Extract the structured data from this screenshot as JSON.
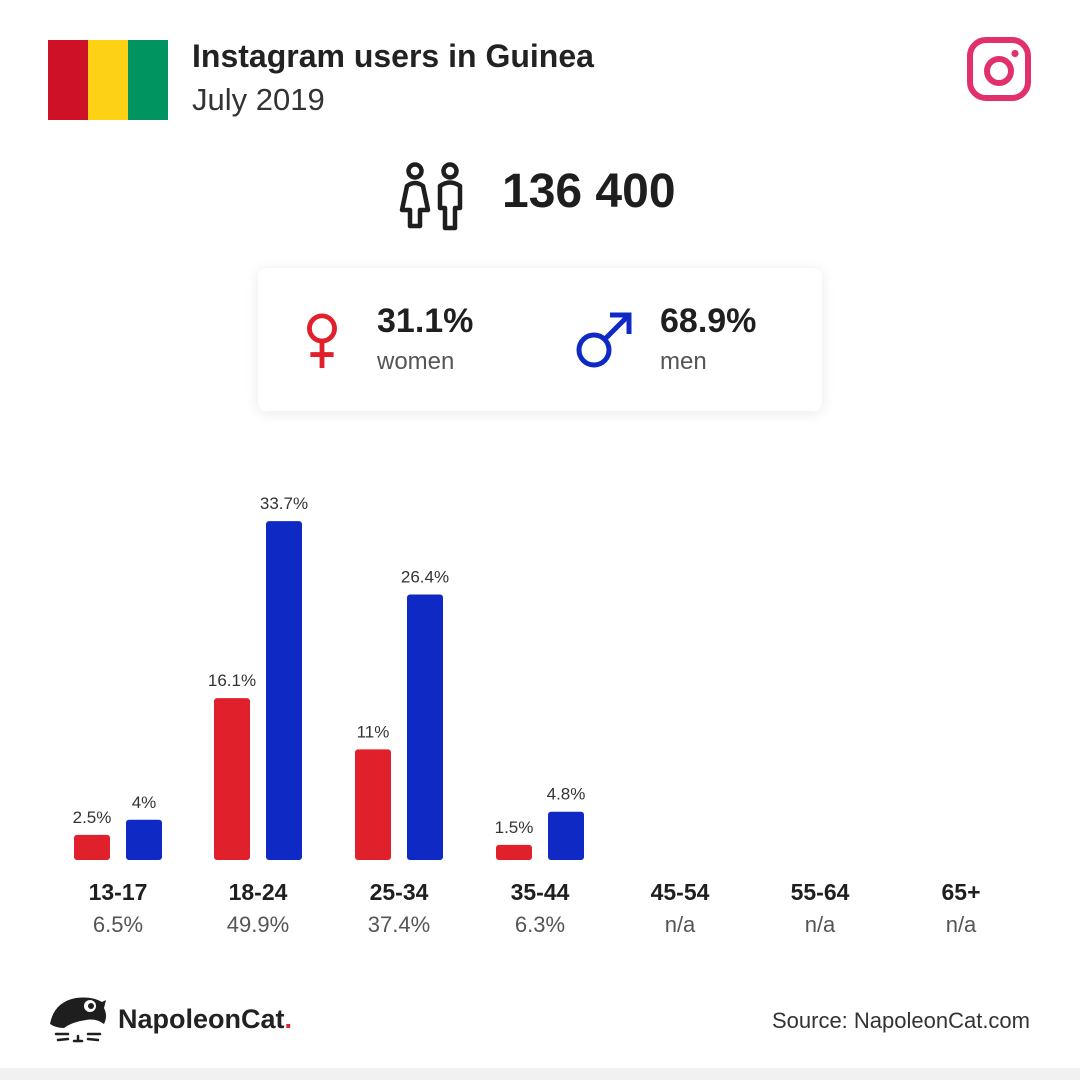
{
  "header": {
    "title": "Instagram users in Guinea",
    "subtitle": "July 2019",
    "flag_colors": [
      "#ce1126",
      "#fcd116",
      "#009460"
    ],
    "brand_icon": "instagram-icon",
    "brand_color": "#e1306c"
  },
  "summary": {
    "icon": "people-icon",
    "total": "136 400"
  },
  "gender": {
    "women": {
      "percent": "31.1%",
      "label": "women",
      "icon": "female-symbol-icon",
      "color": "#e0202b"
    },
    "men": {
      "percent": "68.9%",
      "label": "men",
      "icon": "male-symbol-icon",
      "color": "#0f2ac4"
    }
  },
  "chart_data": {
    "type": "bar",
    "categories": [
      "13-17",
      "18-24",
      "25-34",
      "35-44",
      "45-54",
      "55-64",
      "65+"
    ],
    "category_totals": [
      "6.5%",
      "49.9%",
      "37.4%",
      "6.3%",
      "n/a",
      "n/a",
      "n/a"
    ],
    "series": [
      {
        "name": "women",
        "color": "#e0202b",
        "values": [
          2.5,
          16.1,
          11,
          1.5,
          null,
          null,
          null
        ],
        "labels": [
          "2.5%",
          "16.1%",
          "11%",
          "1.5%",
          "",
          "",
          ""
        ]
      },
      {
        "name": "men",
        "color": "#0f2ac4",
        "values": [
          4,
          33.7,
          26.4,
          4.8,
          null,
          null,
          null
        ],
        "labels": [
          "4%",
          "33.7%",
          "26.4%",
          "4.8%",
          "",
          "",
          ""
        ]
      }
    ],
    "ylim": [
      0,
      35
    ],
    "grid": false,
    "legend": "none"
  },
  "footer": {
    "brand_name": "NapoleonCat",
    "brand_dot": ".",
    "brand_icon": "napoleoncat-logo-icon",
    "source": "Source: NapoleonCat.com"
  }
}
